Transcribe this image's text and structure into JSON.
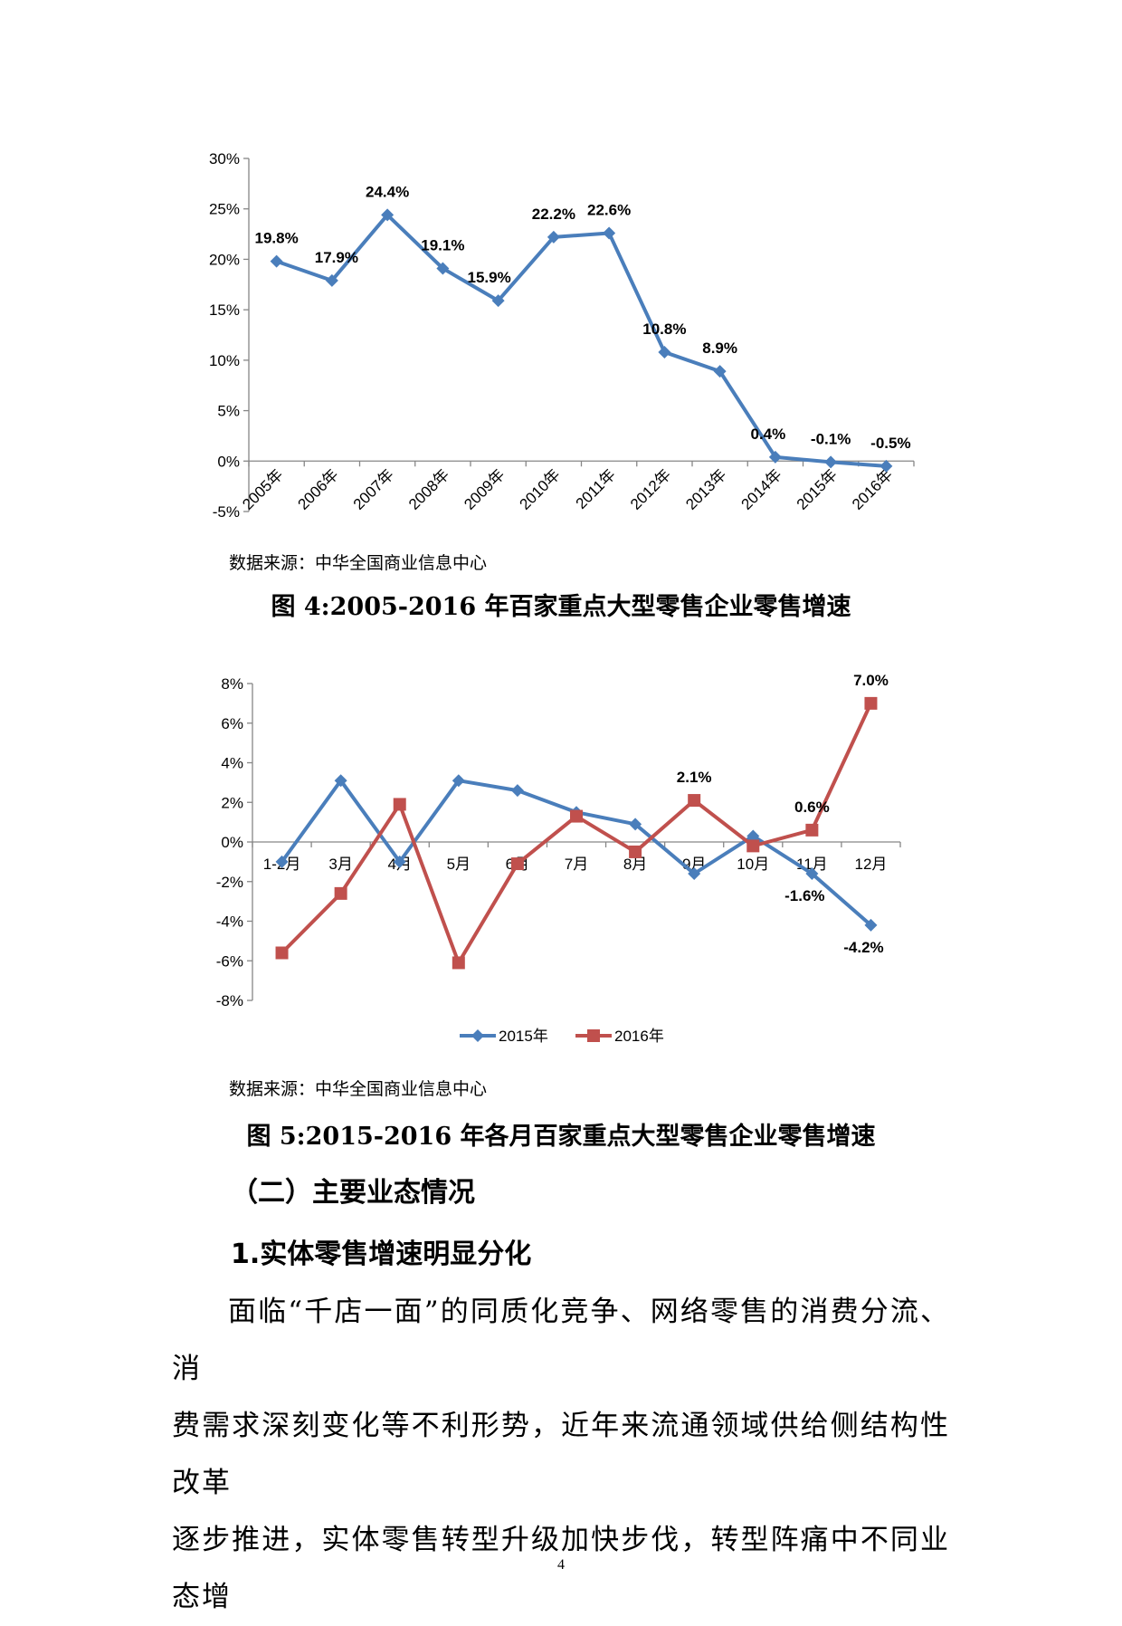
{
  "chart_data": [
    {
      "type": "line",
      "title": "",
      "categories": [
        "2005年",
        "2006年",
        "2007年",
        "2008年",
        "2009年",
        "2010年",
        "2011年",
        "2012年",
        "2013年",
        "2014年",
        "2015年",
        "2016年"
      ],
      "values": [
        19.8,
        17.9,
        24.4,
        19.1,
        15.9,
        22.2,
        22.6,
        10.8,
        8.9,
        0.4,
        -0.1,
        -0.5
      ],
      "data_labels": [
        "19.8%",
        "17.9%",
        "24.4%",
        "19.1%",
        "15.9%",
        "22.2%",
        "22.6%",
        "10.8%",
        "8.9%",
        "0.4%",
        "-0.1%",
        "-0.5%"
      ],
      "ylim": [
        -5,
        30
      ],
      "yticks": [
        "30%",
        "25%",
        "20%",
        "15%",
        "10%",
        "5%",
        "0%",
        "-5%"
      ],
      "ytick_values": [
        30,
        25,
        20,
        15,
        10,
        5,
        0,
        -5
      ],
      "series_color": "#4a7ebb",
      "marker": "diamond",
      "grid": false
    },
    {
      "type": "line",
      "title": "",
      "categories": [
        "1-2月",
        "3月",
        "4月",
        "5月",
        "6月",
        "7月",
        "8月",
        "9月",
        "10月",
        "11月",
        "12月"
      ],
      "series": [
        {
          "name": "2015年",
          "color": "#4a7ebb",
          "marker": "diamond",
          "values": [
            -1.0,
            3.1,
            -1.0,
            3.1,
            2.6,
            1.5,
            0.9,
            -1.6,
            0.3,
            -1.6,
            -4.2
          ]
        },
        {
          "name": "2016年",
          "color": "#c0504d",
          "marker": "square",
          "values": [
            -5.6,
            -2.6,
            1.9,
            -6.1,
            -1.1,
            1.3,
            -0.5,
            2.1,
            -0.2,
            0.6,
            7.0
          ]
        }
      ],
      "annotations": [
        {
          "series": 1,
          "index": 10,
          "text": "7.0%"
        },
        {
          "series": 1,
          "index": 7,
          "text": "2.1%"
        },
        {
          "series": 1,
          "index": 9,
          "text": "0.6%"
        },
        {
          "series": 0,
          "index": 9,
          "text": "-1.6%"
        },
        {
          "series": 0,
          "index": 10,
          "text": "-4.2%"
        }
      ],
      "ylim": [
        -8,
        8
      ],
      "yticks": [
        "8%",
        "6%",
        "4%",
        "2%",
        "0%",
        "-2%",
        "-4%",
        "-6%",
        "-8%"
      ],
      "ytick_values": [
        8,
        6,
        4,
        2,
        0,
        -2,
        -4,
        -6,
        -8
      ],
      "legend": "bottom",
      "grid": false
    }
  ],
  "figure4": {
    "source": "数据来源：中华全国商业信息中心",
    "caption": "图 4:2005-2016 年百家重点大型零售企业零售增速"
  },
  "figure5": {
    "source": "数据来源：中华全国商业信息中心",
    "caption": "图 5:2015-2016 年各月百家重点大型零售企业零售增速"
  },
  "section": {
    "heading": "（二）主要业态情况",
    "subheading": "1.实体零售增速明显分化",
    "paragraph_lines": [
      "面临“千店一面”的同质化竞争、网络零售的消费分流、消",
      "费需求深刻变化等不利形势，近年来流通领域供给侧结构性改革",
      "逐步推进，实体零售转型升级加快步伐，转型阵痛中不同业态增"
    ]
  },
  "page_number": "4"
}
